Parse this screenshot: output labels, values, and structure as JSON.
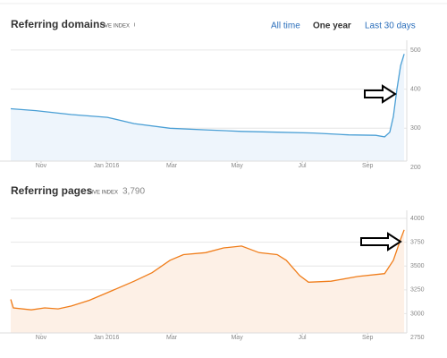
{
  "header": {
    "tabs": [
      "All time",
      "One year",
      "Last 30 days"
    ],
    "active_tab": 1
  },
  "chart_data": [
    {
      "type": "line",
      "title": "Referring domains",
      "badge": "LIVE INDEX",
      "x": [
        0.07,
        0.84,
        1.93,
        3.03,
        3.85,
        4.95,
        6.04,
        7.14,
        8.23,
        9.33,
        10.42,
        11.25,
        11.52,
        11.68,
        11.79,
        11.9,
        12.01,
        12.12
      ],
      "series": [
        {
          "color": "#4a9fd5",
          "fill": "#eef5fc",
          "values": [
            350,
            345,
            335,
            328,
            312,
            300,
            296,
            292,
            290,
            288,
            283,
            282,
            278,
            290,
            330,
            400,
            460,
            490
          ]
        }
      ],
      "xlim": [
        0.07,
        12.2
      ],
      "xticks": [
        {
          "value": 1,
          "label": "Nov"
        },
        {
          "value": 3,
          "label": "Jan 2016"
        },
        {
          "value": 5,
          "label": "Mar"
        },
        {
          "value": 7,
          "label": "May"
        },
        {
          "value": 9,
          "label": "Jul"
        },
        {
          "value": 11,
          "label": "Sep"
        }
      ],
      "ylim": [
        200,
        525
      ],
      "yticks": [
        500,
        400,
        300,
        200
      ],
      "grid": true
    },
    {
      "type": "line",
      "title": "Referring pages",
      "badge": "LIVE INDEX",
      "total": "3,790",
      "x": [
        0.07,
        0.15,
        0.7,
        1.11,
        1.52,
        1.93,
        2.48,
        3.03,
        3.85,
        4.4,
        4.95,
        5.36,
        6.04,
        6.59,
        7.14,
        7.68,
        8.23,
        8.51,
        8.92,
        9.19,
        9.88,
        10.7,
        11.52,
        11.79,
        12.01,
        12.12
      ],
      "series": [
        {
          "color": "#f07d1a",
          "fill": "#fdf0e6",
          "values": [
            3150,
            3060,
            3040,
            3060,
            3050,
            3080,
            3140,
            3220,
            3340,
            3430,
            3560,
            3620,
            3640,
            3690,
            3710,
            3640,
            3620,
            3560,
            3400,
            3330,
            3340,
            3390,
            3420,
            3560,
            3780,
            3880
          ]
        }
      ],
      "xlim": [
        0.07,
        12.2
      ],
      "xticks": [
        {
          "value": 1,
          "label": "Nov"
        },
        {
          "value": 3,
          "label": "Jan 2016"
        },
        {
          "value": 5,
          "label": "Mar"
        },
        {
          "value": 7,
          "label": "May"
        },
        {
          "value": 9,
          "label": "Jul"
        },
        {
          "value": 11,
          "label": "Sep"
        }
      ],
      "ylim": [
        2750,
        4085
      ],
      "yticks": [
        4000,
        3750,
        3500,
        3250,
        3000,
        2750
      ],
      "grid": true
    }
  ]
}
